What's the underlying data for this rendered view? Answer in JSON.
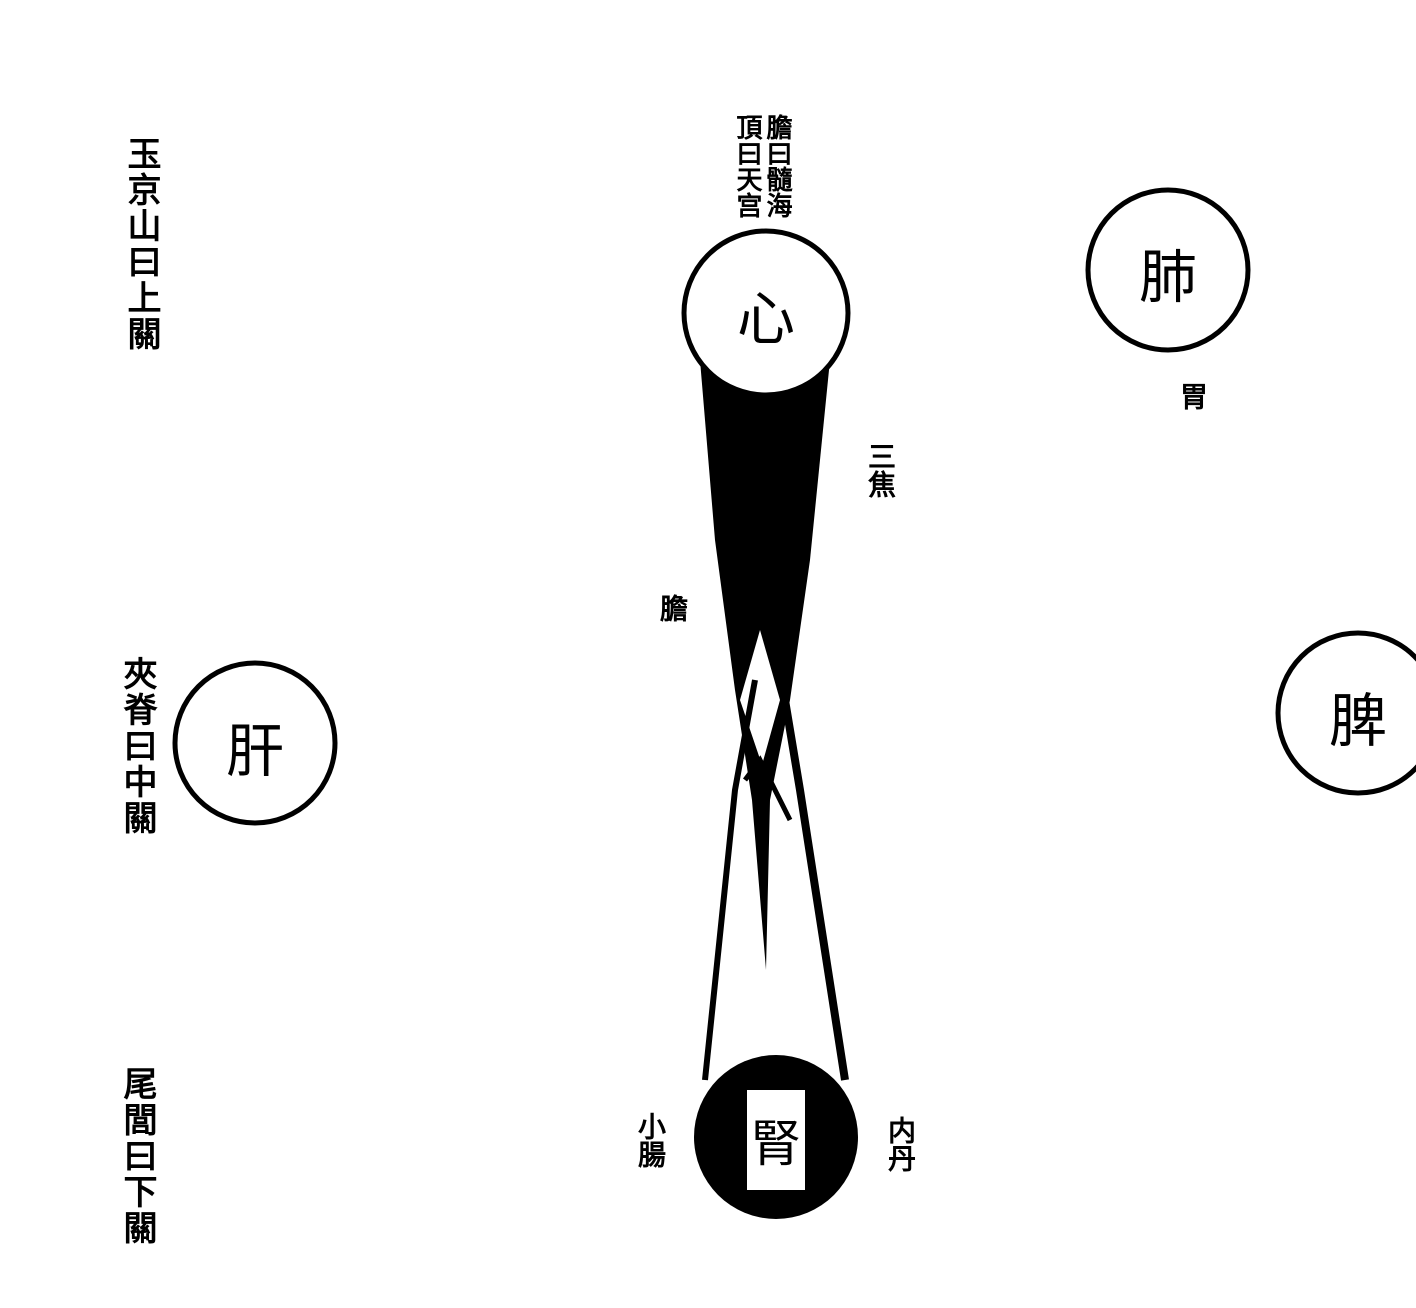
{
  "labels": {
    "upper_gate": "玉京山曰上關",
    "middle_gate": "夾脊曰中關",
    "lower_gate": "尾閭曰下關",
    "top_right": "膽曰髓海",
    "top_left": "頂曰天宫",
    "wei": "胃",
    "sanjiao": "三焦",
    "dan": "膽",
    "small_intestine": "小腸",
    "neidan": "内丹"
  },
  "organs": {
    "heart": "心",
    "lung": "肺",
    "liver": "肝",
    "spleen": "脾",
    "kidney": "腎"
  }
}
